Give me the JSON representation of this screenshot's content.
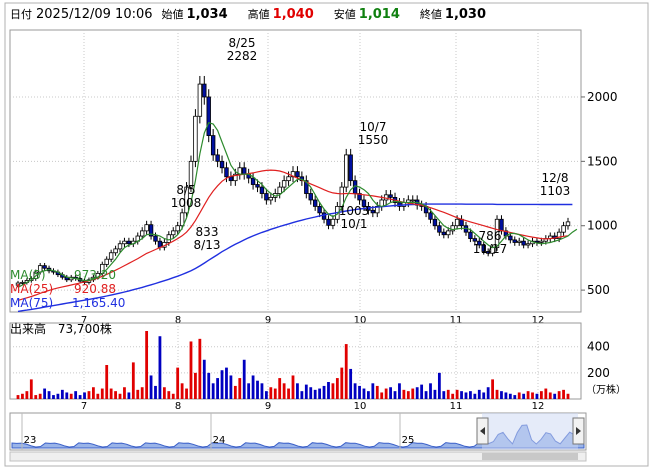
{
  "header": {
    "date_label": "日付",
    "datetime": "2025/12/09 10:06",
    "open_label": "始値",
    "open_value": "1,034",
    "high_label": "高値",
    "high_value": "1,040",
    "low_label": "安値",
    "low_value": "1,014",
    "close_label": "終値",
    "close_value": "1,030"
  },
  "moving_averages": [
    {
      "name": "MA(5)",
      "value": "973.20",
      "color": "#2e8b2e"
    },
    {
      "name": "MA(25)",
      "value": "920.88",
      "color": "#e02020"
    },
    {
      "name": "MA(75)",
      "value": "1,165.40",
      "color": "#2030e0"
    }
  ],
  "volume": {
    "label": "出来高",
    "value": "73,700株",
    "unit": "（万株）",
    "y_ticks": [
      "400",
      "200"
    ]
  },
  "navigator": {
    "year_labels": [
      "23",
      "24",
      "25"
    ]
  },
  "colors": {
    "up": "#e00000",
    "down": "#0000c0",
    "grid": "#c8c8c8"
  },
  "chart_data": {
    "type": "candlestick",
    "x_ticks": [
      "7",
      "8",
      "9",
      "10",
      "11",
      "12"
    ],
    "y_ticks": [
      500,
      1000,
      1500,
      2000
    ],
    "ylim": [
      330,
      2520
    ],
    "annotations": [
      {
        "date": "8/5",
        "price": 1008,
        "text": [
          "8/5",
          "1008"
        ]
      },
      {
        "date": "8/13",
        "price": 833,
        "text": [
          "833",
          "8/13"
        ]
      },
      {
        "date": "8/25",
        "price": 2282,
        "text": [
          "8/25",
          "2282"
        ]
      },
      {
        "date": "10/1",
        "price": 1003,
        "text": [
          "1003",
          "10/1"
        ]
      },
      {
        "date": "10/7",
        "price": 1550,
        "text": [
          "10/7",
          "1550"
        ]
      },
      {
        "date": "11/17",
        "price": 786,
        "text": [
          "786",
          "11/17"
        ]
      },
      {
        "date": "12/8",
        "price": 1103,
        "text": [
          "12/8",
          "1103"
        ]
      }
    ],
    "close_series": [
      555,
      560,
      575,
      590,
      640,
      690,
      670,
      650,
      640,
      620,
      600,
      580,
      600,
      590,
      570,
      560,
      580,
      600,
      630,
      700,
      740,
      790,
      820,
      860,
      880,
      860,
      880,
      920,
      960,
      1008,
      920,
      880,
      833,
      870,
      930,
      960,
      1000,
      1100,
      1300,
      1500,
      1850,
      2100,
      2000,
      1700,
      1550,
      1500,
      1450,
      1380,
      1350,
      1400,
      1450,
      1400,
      1370,
      1320,
      1300,
      1250,
      1200,
      1220,
      1250,
      1300,
      1350,
      1380,
      1420,
      1380,
      1350,
      1250,
      1200,
      1150,
      1100,
      1050,
      1003,
      1050,
      1150,
      1300,
      1550,
      1350,
      1250,
      1200,
      1150,
      1120,
      1100,
      1150,
      1200,
      1240,
      1220,
      1180,
      1150,
      1180,
      1200,
      1200,
      1160,
      1150,
      1100,
      1050,
      1000,
      950,
      930,
      960,
      1000,
      1050,
      1000,
      950,
      900,
      880,
      850,
      800,
      786,
      830,
      1050,
      960,
      920,
      890,
      870,
      880,
      850,
      860,
      880,
      870,
      880,
      900,
      920,
      900,
      950,
      1000,
      1030
    ],
    "ma5_series": [
      520,
      540,
      560,
      580,
      610,
      640,
      650,
      660,
      650,
      640,
      620,
      600,
      595,
      590,
      580,
      575,
      575,
      585,
      600,
      630,
      660,
      700,
      740,
      790,
      830,
      850,
      860,
      880,
      900,
      930,
      935,
      930,
      920,
      900,
      890,
      900,
      930,
      980,
      1060,
      1180,
      1350,
      1560,
      1720,
      1800,
      1790,
      1740,
      1650,
      1560,
      1470,
      1420,
      1400,
      1400,
      1400,
      1380,
      1350,
      1320,
      1280,
      1250,
      1230,
      1240,
      1270,
      1300,
      1330,
      1360,
      1360,
      1340,
      1300,
      1240,
      1180,
      1130,
      1090,
      1070,
      1090,
      1140,
      1220,
      1280,
      1310,
      1300,
      1280,
      1250,
      1200,
      1160,
      1150,
      1160,
      1180,
      1190,
      1185,
      1180,
      1180,
      1180,
      1180,
      1170,
      1150,
      1120,
      1080,
      1040,
      1000,
      980,
      970,
      975,
      980,
      980,
      970,
      940,
      910,
      880,
      850,
      830,
      840,
      880,
      920,
      940,
      940,
      930,
      910,
      890,
      875,
      865,
      860,
      865,
      870,
      880,
      890,
      905,
      920,
      950,
      973
    ],
    "ma25_series": [
      420,
      430,
      440,
      450,
      462,
      475,
      487,
      498,
      508,
      517,
      525,
      532,
      540,
      548,
      556,
      564,
      572,
      582,
      594,
      607,
      622,
      638,
      655,
      672,
      690,
      708,
      726,
      745,
      765,
      785,
      800,
      815,
      830,
      845,
      862,
      880,
      900,
      922,
      950,
      990,
      1040,
      1100,
      1160,
      1220,
      1270,
      1310,
      1345,
      1370,
      1385,
      1390,
      1395,
      1400,
      1405,
      1410,
      1418,
      1425,
      1430,
      1432,
      1430,
      1425,
      1415,
      1400,
      1385,
      1370,
      1355,
      1340,
      1325,
      1310,
      1295,
      1280,
      1265,
      1255,
      1250,
      1248,
      1250,
      1250,
      1248,
      1245,
      1240,
      1236,
      1232,
      1226,
      1220,
      1214,
      1206,
      1198,
      1190,
      1182,
      1176,
      1170,
      1165,
      1160,
      1150,
      1140,
      1128,
      1116,
      1104,
      1090,
      1076,
      1062,
      1050,
      1040,
      1030,
      1020,
      1010,
      1000,
      990,
      980,
      970,
      962,
      955,
      948,
      940,
      932,
      925,
      918,
      912,
      906,
      900,
      898,
      900,
      905,
      912,
      918,
      921
    ],
    "ma75_series": [
      335,
      340,
      345,
      350,
      356,
      362,
      368,
      374,
      380,
      386,
      392,
      398,
      404,
      410,
      416,
      422,
      428,
      434,
      440,
      447,
      454,
      461,
      469,
      477,
      485,
      494,
      503,
      512,
      521,
      531,
      541,
      551,
      562,
      573,
      584,
      596,
      608,
      621,
      635,
      650,
      668,
      688,
      710,
      732,
      754,
      776,
      798,
      818,
      838,
      856,
      873,
      890,
      906,
      921,
      935,
      948,
      960,
      972,
      983,
      994,
      1004,
      1014,
      1024,
      1034,
      1043,
      1052,
      1060,
      1068,
      1076,
      1083,
      1090,
      1096,
      1102,
      1108,
      1114,
      1120,
      1125,
      1130,
      1134,
      1138,
      1142,
      1145,
      1148,
      1151,
      1154,
      1157,
      1159,
      1161,
      1163,
      1165,
      1166,
      1167,
      1168,
      1168,
      1168,
      1168,
      1168,
      1168,
      1168,
      1168,
      1168,
      1167,
      1167,
      1167,
      1167,
      1167,
      1167,
      1167,
      1166,
      1166,
      1166,
      1166,
      1166,
      1166,
      1166,
      1166,
      1166,
      1166,
      1165,
      1165,
      1165,
      1165,
      1165,
      1165,
      1165,
      1165
    ],
    "volume_series": [
      30,
      40,
      60,
      150,
      30,
      40,
      80,
      60,
      30,
      40,
      70,
      50,
      40,
      60,
      30,
      50,
      60,
      90,
      40,
      80,
      260,
      80,
      60,
      40,
      90,
      50,
      280,
      70,
      90,
      520,
      180,
      100,
      480,
      90,
      60,
      40,
      240,
      120,
      80,
      440,
      200,
      460,
      300,
      200,
      120,
      160,
      220,
      240,
      180,
      100,
      160,
      300,
      120,
      180,
      140,
      120,
      60,
      90,
      80,
      160,
      120,
      80,
      180,
      120,
      60,
      110,
      90,
      70,
      80,
      100,
      130,
      120,
      160,
      240,
      420,
      230,
      120,
      100,
      80,
      60,
      120,
      100,
      50,
      80,
      90,
      60,
      120,
      70,
      60,
      80,
      90,
      110,
      60,
      120,
      70,
      200,
      60,
      70,
      40,
      70,
      60,
      50,
      60,
      40,
      70,
      50,
      90,
      150,
      70,
      60,
      50,
      40,
      30,
      50,
      40,
      60,
      50,
      40,
      60,
      80,
      50,
      40,
      60,
      70,
      40
    ]
  }
}
